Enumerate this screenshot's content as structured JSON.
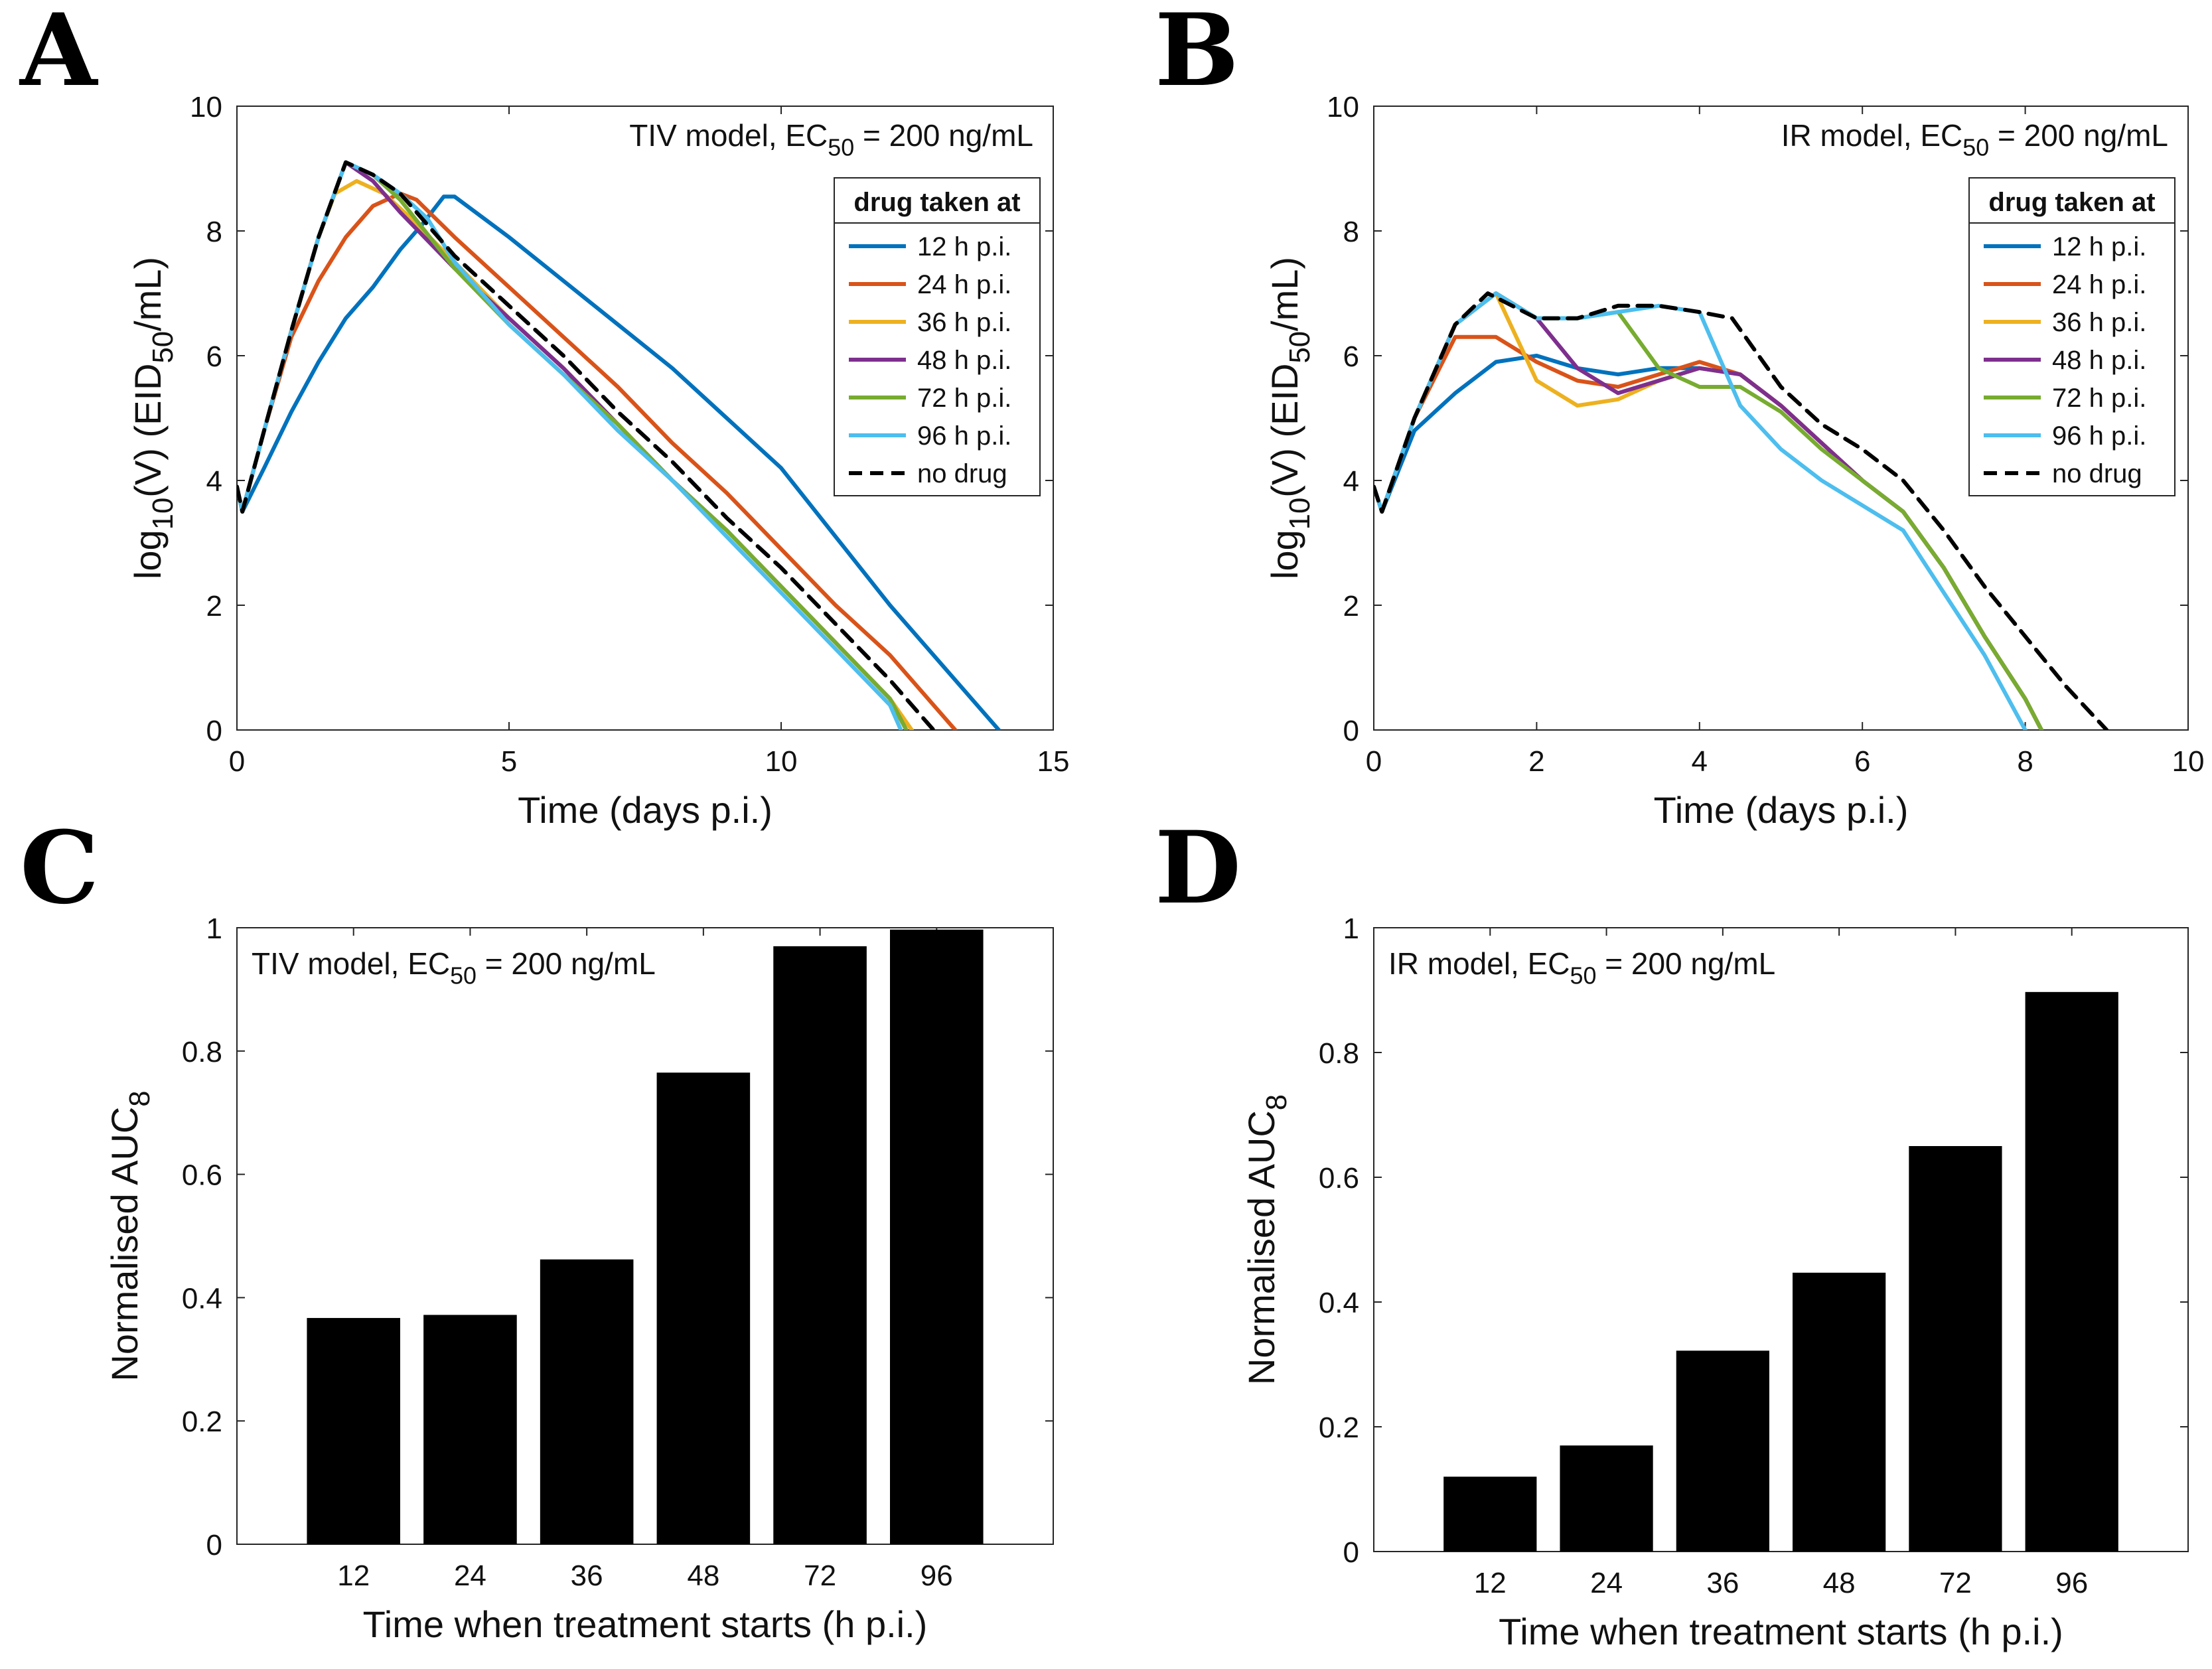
{
  "chart_data": [
    {
      "panel": "A",
      "type": "line",
      "title": "TIV model, EC50 = 200 ng/mL",
      "title_parts": {
        "pre": "TIV model, EC",
        "sub": "50",
        "post": " = 200 ng/mL"
      },
      "xlabel": "Time (days p.i.)",
      "ylabel_parts": {
        "a": "log",
        "sub1": "10",
        "b": "(V) (EID",
        "sub2": "50",
        "c": "/mL)"
      },
      "xlim": [
        0,
        15
      ],
      "ylim": [
        0,
        10
      ],
      "xticks": [
        0,
        5,
        10,
        15
      ],
      "yticks": [
        0,
        2,
        4,
        6,
        8,
        10
      ],
      "legend_title": "drug taken at",
      "legend_position": "top-right",
      "series": [
        {
          "name": "12 h p.i.",
          "color": "#0072bd",
          "dash": false,
          "x": [
            0,
            0.1,
            0.5,
            1.0,
            1.5,
            2.0,
            2.5,
            3.0,
            3.4,
            3.8,
            4.0,
            5,
            6,
            7,
            8,
            9,
            10,
            11,
            12,
            13,
            14.0
          ],
          "y": [
            3.9,
            3.5,
            4.2,
            5.1,
            5.9,
            6.6,
            7.1,
            7.7,
            8.1,
            8.55,
            8.55,
            7.9,
            7.2,
            6.5,
            5.8,
            5.0,
            4.2,
            3.1,
            2.0,
            1.0,
            0
          ]
        },
        {
          "name": "24 h p.i.",
          "color": "#d95319",
          "dash": false,
          "x": [
            0,
            0.1,
            0.5,
            1.0,
            1.5,
            2.0,
            2.5,
            3.0,
            3.3,
            4,
            5,
            6,
            7,
            8,
            9,
            10,
            11,
            12,
            13.2
          ],
          "y": [
            3.9,
            3.5,
            4.8,
            6.3,
            7.2,
            7.9,
            8.4,
            8.6,
            8.5,
            7.9,
            7.1,
            6.3,
            5.5,
            4.6,
            3.8,
            2.9,
            2.0,
            1.2,
            0
          ]
        },
        {
          "name": "36 h p.i.",
          "color": "#edb120",
          "dash": false,
          "x": [
            0,
            0.1,
            0.5,
            1.0,
            1.5,
            1.8,
            2.2,
            2.7,
            3.2,
            4,
            5,
            6,
            7,
            8,
            9,
            10,
            11,
            12,
            12.4
          ],
          "y": [
            3.9,
            3.5,
            4.8,
            6.4,
            7.9,
            8.6,
            8.8,
            8.6,
            8.2,
            7.5,
            6.6,
            5.8,
            4.9,
            4.0,
            3.2,
            2.3,
            1.4,
            0.5,
            0
          ]
        },
        {
          "name": "48 h p.i.",
          "color": "#7e2f8e",
          "dash": false,
          "x": [
            0,
            0.1,
            0.5,
            1.0,
            1.5,
            2.0,
            2.5,
            3.0,
            4,
            5,
            6,
            7,
            8,
            9,
            10,
            11,
            12,
            12.3
          ],
          "y": [
            3.9,
            3.5,
            4.8,
            6.4,
            7.9,
            9.1,
            8.8,
            8.3,
            7.4,
            6.6,
            5.8,
            4.9,
            4.0,
            3.2,
            2.3,
            1.4,
            0.5,
            0
          ]
        },
        {
          "name": "72 h p.i.",
          "color": "#77ac30",
          "dash": false,
          "x": [
            0,
            0.1,
            0.5,
            1.0,
            1.5,
            2.0,
            2.5,
            3.0,
            4,
            5,
            6,
            7,
            8,
            9,
            10,
            11,
            12,
            12.3
          ],
          "y": [
            3.9,
            3.5,
            4.8,
            6.4,
            7.9,
            9.1,
            8.9,
            8.5,
            7.4,
            6.5,
            5.7,
            4.9,
            4.0,
            3.2,
            2.3,
            1.4,
            0.5,
            0
          ]
        },
        {
          "name": "96 h p.i.",
          "color": "#4dbeee",
          "dash": false,
          "x": [
            0,
            0.1,
            0.5,
            1.0,
            1.5,
            2.0,
            2.5,
            3.0,
            3.5,
            4,
            5,
            6,
            7,
            8,
            9,
            10,
            11,
            12,
            12.2
          ],
          "y": [
            3.9,
            3.5,
            4.8,
            6.4,
            7.9,
            9.1,
            8.9,
            8.6,
            8.2,
            7.5,
            6.5,
            5.7,
            4.8,
            4.0,
            3.1,
            2.2,
            1.3,
            0.4,
            0
          ]
        },
        {
          "name": "no drug",
          "color": "#000000",
          "dash": true,
          "x": [
            0,
            0.1,
            0.5,
            1.0,
            1.5,
            2.0,
            2.5,
            3.0,
            4,
            5,
            6,
            7,
            8,
            9,
            10,
            11,
            12,
            12.8
          ],
          "y": [
            3.9,
            3.5,
            4.8,
            6.4,
            7.9,
            9.1,
            8.9,
            8.6,
            7.6,
            6.8,
            6.0,
            5.1,
            4.3,
            3.4,
            2.6,
            1.7,
            0.8,
            0
          ]
        }
      ]
    },
    {
      "panel": "B",
      "type": "line",
      "title": "IR model, EC50 = 200 ng/mL",
      "title_parts": {
        "pre": "IR model, EC",
        "sub": "50",
        "post": " = 200 ng/mL"
      },
      "xlabel": "Time (days p.i.)",
      "ylabel_parts": {
        "a": "log",
        "sub1": "10",
        "b": "(V) (EID",
        "sub2": "50",
        "c": "/mL)"
      },
      "xlim": [
        0,
        10
      ],
      "ylim": [
        0,
        10
      ],
      "xticks": [
        0,
        2,
        4,
        6,
        8,
        10
      ],
      "yticks": [
        0,
        2,
        4,
        6,
        8,
        10
      ],
      "legend_title": "drug taken at",
      "legend_position": "top-right",
      "series": [
        {
          "name": "12 h p.i.",
          "color": "#0072bd",
          "dash": false,
          "x": [
            0,
            0.1,
            0.5,
            1.0,
            1.5,
            2.0,
            2.5,
            3.0,
            3.5,
            4.0,
            4.5,
            5.0,
            5.5,
            6.0,
            6.5,
            7.0,
            7.5,
            8.0,
            8.2
          ],
          "y": [
            3.9,
            3.5,
            4.8,
            5.4,
            5.9,
            6.0,
            5.8,
            5.7,
            5.8,
            5.8,
            5.7,
            5.2,
            4.6,
            4.0,
            3.5,
            2.6,
            1.5,
            0.5,
            0
          ]
        },
        {
          "name": "24 h p.i.",
          "color": "#d95319",
          "dash": false,
          "x": [
            0,
            0.1,
            0.5,
            1.0,
            1.5,
            2.0,
            2.5,
            3.0,
            3.5,
            4.0,
            4.5,
            5.0,
            5.5,
            6.0,
            6.5,
            7.0,
            7.5,
            8.0,
            8.2
          ],
          "y": [
            3.9,
            3.5,
            5.0,
            6.3,
            6.3,
            5.9,
            5.6,
            5.5,
            5.7,
            5.9,
            5.7,
            5.2,
            4.6,
            4.0,
            3.5,
            2.6,
            1.5,
            0.5,
            0
          ]
        },
        {
          "name": "36 h p.i.",
          "color": "#edb120",
          "dash": false,
          "x": [
            0,
            0.1,
            0.5,
            1.0,
            1.5,
            2.0,
            2.5,
            3.0,
            3.5,
            4.0,
            4.5,
            5.0,
            5.5,
            6.0,
            6.5,
            7.0,
            7.5,
            8.0,
            8.2
          ],
          "y": [
            3.9,
            3.5,
            5.0,
            6.5,
            7.0,
            5.6,
            5.2,
            5.3,
            5.6,
            5.8,
            5.7,
            5.2,
            4.6,
            4.0,
            3.5,
            2.6,
            1.5,
            0.5,
            0
          ]
        },
        {
          "name": "48 h p.i.",
          "color": "#7e2f8e",
          "dash": false,
          "x": [
            0,
            0.1,
            0.5,
            1.0,
            1.5,
            2.0,
            2.5,
            3.0,
            3.5,
            4.0,
            4.5,
            5.0,
            5.5,
            6.0,
            6.5,
            7.0,
            7.5,
            8.0,
            8.2
          ],
          "y": [
            3.9,
            3.5,
            5.0,
            6.5,
            7.0,
            6.6,
            5.8,
            5.4,
            5.6,
            5.8,
            5.7,
            5.2,
            4.6,
            4.0,
            3.5,
            2.6,
            1.5,
            0.5,
            0
          ]
        },
        {
          "name": "72 h p.i.",
          "color": "#77ac30",
          "dash": false,
          "x": [
            0,
            0.1,
            0.5,
            1.0,
            1.5,
            2.0,
            2.5,
            3.0,
            3.5,
            4.0,
            4.5,
            5.0,
            5.5,
            6.0,
            6.5,
            7.0,
            7.5,
            8.0,
            8.2
          ],
          "y": [
            3.9,
            3.5,
            5.0,
            6.5,
            7.0,
            6.6,
            6.6,
            6.7,
            5.8,
            5.5,
            5.5,
            5.1,
            4.5,
            4.0,
            3.5,
            2.6,
            1.5,
            0.5,
            0
          ]
        },
        {
          "name": "96 h p.i.",
          "color": "#4dbeee",
          "dash": false,
          "x": [
            0,
            0.1,
            0.5,
            1.0,
            1.5,
            2.0,
            2.5,
            3.0,
            3.5,
            4.0,
            4.5,
            5.0,
            5.5,
            6.0,
            6.5,
            7.0,
            7.5,
            8.0
          ],
          "y": [
            3.9,
            3.5,
            5.0,
            6.5,
            7.0,
            6.6,
            6.6,
            6.7,
            6.8,
            6.7,
            5.2,
            4.5,
            4.0,
            3.6,
            3.2,
            2.2,
            1.2,
            0
          ]
        },
        {
          "name": "no drug",
          "color": "#000000",
          "dash": true,
          "x": [
            0,
            0.1,
            0.5,
            1.0,
            1.4,
            2.0,
            2.5,
            3.0,
            3.5,
            4.0,
            4.4,
            5.0,
            5.5,
            6.0,
            6.5,
            7.0,
            7.5,
            8.0,
            8.5,
            9.0
          ],
          "y": [
            3.9,
            3.5,
            5.0,
            6.5,
            7.0,
            6.6,
            6.6,
            6.8,
            6.8,
            6.7,
            6.6,
            5.5,
            4.9,
            4.5,
            4.0,
            3.2,
            2.3,
            1.5,
            0.7,
            0
          ]
        }
      ]
    },
    {
      "panel": "C",
      "type": "bar",
      "title": "TIV model, EC50 = 200 ng/mL",
      "title_parts": {
        "pre": "TIV model, EC",
        "sub": "50",
        "post": " = 200 ng/mL"
      },
      "xlabel": "Time when treatment starts (h p.i.)",
      "ylabel_parts": {
        "a": "Normalised AUC",
        "sub1": "8"
      },
      "categories": [
        "12",
        "24",
        "36",
        "48",
        "72",
        "96"
      ],
      "values": [
        0.367,
        0.372,
        0.462,
        0.765,
        0.97,
        0.997
      ],
      "ylim": [
        0,
        1
      ],
      "yticks": [
        0,
        0.2,
        0.4,
        0.6,
        0.8,
        1
      ],
      "ytick_labels": [
        "0",
        "0.2",
        "0.4",
        "0.6",
        "0.8",
        "1"
      ],
      "bar_color": "#000000"
    },
    {
      "panel": "D",
      "type": "bar",
      "title": "IR model, EC50 = 200 ng/mL",
      "title_parts": {
        "pre": "IR model, EC",
        "sub": "50",
        "post": " = 200 ng/mL"
      },
      "xlabel": "Time when treatment starts (h p.i.)",
      "ylabel_parts": {
        "a": "Normalised AUC",
        "sub1": "8"
      },
      "categories": [
        "12",
        "24",
        "36",
        "48",
        "72",
        "96"
      ],
      "values": [
        0.12,
        0.17,
        0.322,
        0.447,
        0.65,
        0.897
      ],
      "ylim": [
        0,
        1
      ],
      "yticks": [
        0,
        0.2,
        0.4,
        0.6,
        0.8,
        1
      ],
      "ytick_labels": [
        "0",
        "0.2",
        "0.4",
        "0.6",
        "0.8",
        "1"
      ],
      "bar_color": "#000000"
    }
  ],
  "panel_labels": [
    "A",
    "B",
    "C",
    "D"
  ]
}
